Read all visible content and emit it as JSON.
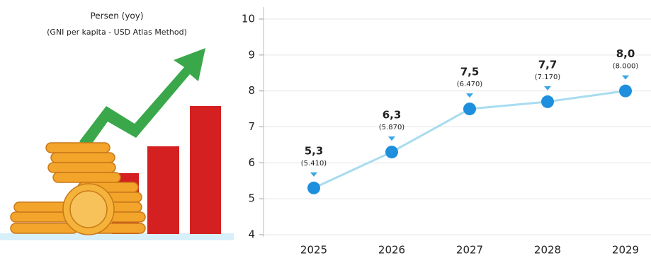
{
  "chart_data": {
    "type": "line",
    "title": "Persen (yoy)",
    "subtitle": "(GNI per kapita - USD Atlas Method)",
    "categories": [
      "2025",
      "2026",
      "2027",
      "2028",
      "2029"
    ],
    "series": [
      {
        "color": "#1e8fdd",
        "line_color": "#a8dcef",
        "values": [
          5.3,
          6.3,
          7.5,
          7.7,
          8.0
        ],
        "value_labels": [
          "5,3",
          "6,3",
          "7,5",
          "7,7",
          "8,0"
        ]
      }
    ],
    "annotations": [
      "(5.410)",
      "(5.870)",
      "(6.470)",
      "(7.170)",
      "(8.000)"
    ],
    "ylim": [
      4,
      10
    ],
    "yticks": [
      4,
      5,
      6,
      7,
      8,
      9,
      10
    ],
    "grid": true
  }
}
